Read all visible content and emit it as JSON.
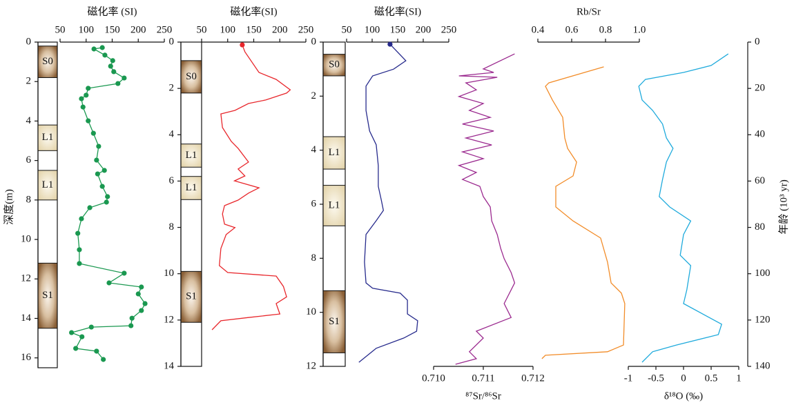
{
  "chart_data": [
    {
      "type": "line",
      "title": "磁化率 (SI)",
      "ylabel": "深度(m)",
      "xlim": [
        50,
        250
      ],
      "xticks": [
        50,
        100,
        150,
        200,
        250
      ],
      "ylim": [
        0,
        16.5
      ],
      "yticks": [
        0,
        2,
        4,
        6,
        8,
        10,
        12,
        14,
        16
      ],
      "color": "#1a9850",
      "markers": true,
      "layers": [
        {
          "label": "S0",
          "top": 0.2,
          "bottom": 1.8
        },
        {
          "label": "L1",
          "top": 4.2,
          "bottom": 5.5
        },
        {
          "label": "L1",
          "top": 6.5,
          "bottom": 8
        },
        {
          "label": "S1",
          "top": 11.2,
          "bottom": 14.5
        }
      ],
      "depth": [
        0.28,
        0.35,
        0.66,
        0.94,
        1.22,
        1.5,
        1.82,
        2.1,
        2.34,
        2.69,
        2.87,
        3.29,
        3.99,
        4.62,
        5.28,
        5.98,
        6.5,
        6.68,
        7.31,
        7.83,
        8.11,
        8.39,
        8.95,
        9.69,
        10.52,
        11.22,
        11.71,
        12.2,
        12.41,
        12.76,
        13.25,
        13.6,
        13.99,
        14.37,
        14.44,
        14.72,
        14.93,
        15.52,
        15.66,
        16.08
      ],
      "values": [
        131,
        115,
        136,
        151,
        147,
        153,
        173,
        161,
        104,
        100,
        91,
        94,
        104,
        114,
        124,
        120,
        135,
        122,
        131,
        141,
        139,
        107,
        91,
        84,
        87,
        87,
        173,
        144,
        206,
        200,
        213,
        206,
        188,
        186,
        110,
        72,
        92,
        80,
        120,
        133
      ]
    },
    {
      "type": "line",
      "title": "磁化率(SI)",
      "xlim": [
        50,
        250
      ],
      "xticks": [
        50,
        100,
        150,
        200,
        250
      ],
      "ylim": [
        0,
        14
      ],
      "yticks": [
        0,
        2,
        4,
        6,
        8,
        10,
        12,
        14
      ],
      "color": "#e8262b",
      "first_marker": true,
      "layers": [
        {
          "label": "S0",
          "top": 0.8,
          "bottom": 2.2
        },
        {
          "label": "L1",
          "top": 4.4,
          "bottom": 5.4
        },
        {
          "label": "L1",
          "top": 5.8,
          "bottom": 6.8
        },
        {
          "label": "S1",
          "top": 9.9,
          "bottom": 12.1
        }
      ],
      "depth": [
        0.12,
        0.42,
        1.31,
        1.61,
        2.06,
        2.2,
        2.5,
        2.65,
        2.95,
        3.1,
        3.69,
        4.29,
        4.59,
        5.18,
        5.48,
        5.78,
        5.99,
        6.29,
        6.52,
        6.82,
        7.06,
        7.42,
        7.86,
        8.01,
        8.31,
        8.91,
        9.65,
        9.95,
        10.1,
        10.55,
        11.0,
        11.29,
        11.74,
        11.89,
        12.03,
        12.42
      ],
      "values": [
        128,
        133,
        160,
        193,
        220,
        213,
        173,
        140,
        114,
        87,
        90,
        107,
        120,
        140,
        120,
        133,
        113,
        160,
        140,
        120,
        94,
        90,
        94,
        114,
        97,
        87,
        84,
        100,
        193,
        207,
        213,
        193,
        200,
        140,
        87,
        70
      ]
    },
    {
      "type": "line",
      "title": "磁化率(SI)",
      "xlim": [
        50,
        250
      ],
      "xticks": [
        50,
        100,
        150,
        200,
        250
      ],
      "ylim": [
        0,
        12
      ],
      "yticks": [
        0,
        2,
        4,
        6,
        8,
        10,
        12
      ],
      "color": "#262a8c",
      "first_marker": true,
      "layers": [
        {
          "label": "S0",
          "top": 0.45,
          "bottom": 1.25
        },
        {
          "label": "L1",
          "top": 3.5,
          "bottom": 4.7
        },
        {
          "label": "L1",
          "top": 5.3,
          "bottom": 6.8
        },
        {
          "label": "S1",
          "top": 9.2,
          "bottom": 11.5
        }
      ],
      "depth": [
        0.08,
        0.69,
        1.0,
        1.25,
        1.63,
        2.53,
        3.29,
        3.8,
        4.57,
        5.34,
        5.85,
        6.23,
        6.61,
        7.12,
        8.14,
        8.91,
        9.11,
        9.29,
        9.55,
        10.06,
        10.31,
        10.7,
        10.95,
        11.33,
        11.85
      ],
      "values": [
        135,
        166,
        142,
        101,
        88,
        88,
        95,
        108,
        112,
        112,
        118,
        122,
        108,
        88,
        85,
        88,
        101,
        155,
        169,
        169,
        189,
        187,
        162,
        108,
        74
      ]
    },
    {
      "type": "line",
      "xlabel": "⁸⁷Sr/⁸⁶Sr",
      "xlim": [
        0.71,
        0.712
      ],
      "xticks": [
        {
          "value": 0.71,
          "label": "0.710"
        },
        0.711,
        0.712
      ],
      "color": "#9b2a8f",
      "age": [
        5.1,
        11.6,
        13.1,
        14.6,
        15.2,
        17.6,
        20.6,
        23.5,
        26.5,
        29.5,
        32.5,
        35.4,
        38.4,
        41.4,
        44.4,
        47.4,
        50.3,
        53.3,
        56.3,
        59.3,
        62.3,
        66.7,
        71.2,
        77.2,
        83.1,
        89.1,
        93.5,
        99.5,
        104,
        112.9,
        118.9,
        124.8,
        127.8,
        133.7,
        136.7,
        139.1
      ],
      "values": [
        0.71163,
        0.711,
        0.71121,
        0.71051,
        0.71128,
        0.71065,
        0.71086,
        0.71051,
        0.711,
        0.71072,
        0.71114,
        0.71058,
        0.71121,
        0.71065,
        0.71117,
        0.71058,
        0.711,
        0.71051,
        0.71086,
        0.71058,
        0.71093,
        0.711,
        0.71114,
        0.71117,
        0.71128,
        0.71135,
        0.71142,
        0.71156,
        0.71163,
        0.71142,
        0.71156,
        0.71086,
        0.711,
        0.71072,
        0.71086,
        0.71044
      ]
    },
    {
      "type": "line",
      "title": "Rb/Sr",
      "xlim": [
        0.4,
        1
      ],
      "xticks": [
        0.4,
        0.6,
        0.8,
        {
          "value": 1,
          "label": "1.0"
        }
      ],
      "color": "#f28c28",
      "age": [
        10.7,
        17.6,
        19.1,
        25,
        32.5,
        41.4,
        45.9,
        51.8,
        57.8,
        62.3,
        71.2,
        77.2,
        84.6,
        95,
        104,
        108.4,
        112.9,
        130.8,
        133.7,
        135.2,
        136.7
      ],
      "values": [
        0.79,
        0.465,
        0.445,
        0.486,
        0.547,
        0.559,
        0.576,
        0.629,
        0.608,
        0.506,
        0.506,
        0.608,
        0.771,
        0.812,
        0.833,
        0.894,
        0.914,
        0.906,
        0.812,
        0.445,
        0.424
      ]
    },
    {
      "type": "line",
      "xlabel": "δ¹⁸O (‰)",
      "ylabel": "年龄 (10³ yr)",
      "xlim": [
        -1,
        1
      ],
      "xticks": [
        -1,
        -0.5,
        0,
        0.5,
        1
      ],
      "ylim": [
        0,
        140
      ],
      "yticks": [
        0,
        20,
        40,
        60,
        80,
        100,
        120,
        140
      ],
      "color": "#1eaadc",
      "age": [
        5.1,
        10.1,
        13.1,
        16.1,
        19.1,
        25,
        29.5,
        35.4,
        41.4,
        45.9,
        51.8,
        59.3,
        66.7,
        71.2,
        77.2,
        83.1,
        92,
        96.5,
        106.9,
        112.9,
        121.8,
        126.3,
        130.8,
        133.7,
        138.2
      ],
      "values": [
        0.81,
        0.5,
        0,
        -0.69,
        -0.81,
        -0.75,
        -0.56,
        -0.38,
        -0.31,
        -0.19,
        -0.31,
        -0.38,
        -0.44,
        -0.25,
        0.13,
        0,
        -0.06,
        0.13,
        0.06,
        0,
        0.69,
        0.63,
        -0.13,
        -0.56,
        -0.75
      ]
    }
  ]
}
